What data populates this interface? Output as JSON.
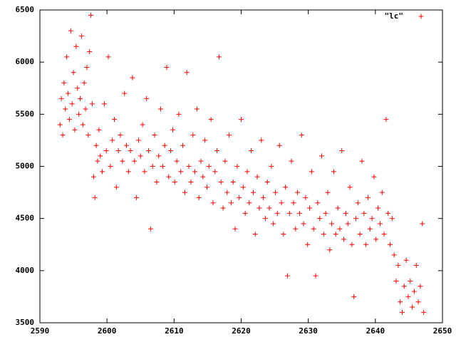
{
  "chart_data": {
    "type": "scatter",
    "x": [
      2593.0,
      2593.2,
      2593.4,
      2593.6,
      2593.8,
      2594.0,
      2594.2,
      2594.4,
      2594.6,
      2594.8,
      2595.0,
      2595.2,
      2595.4,
      2595.6,
      2595.8,
      2596.0,
      2596.2,
      2596.4,
      2596.6,
      2596.8,
      2597.0,
      2597.2,
      2597.4,
      2597.6,
      2597.8,
      2598.0,
      2598.2,
      2598.4,
      2598.6,
      2598.8,
      2599.0,
      2599.3,
      2599.6,
      2599.9,
      2600.2,
      2600.5,
      2600.8,
      2601.1,
      2601.4,
      2601.7,
      2602.0,
      2602.3,
      2602.6,
      2602.9,
      2603.2,
      2603.5,
      2603.8,
      2604.1,
      2604.4,
      2604.7,
      2605.0,
      2605.3,
      2605.6,
      2605.9,
      2606.2,
      2606.5,
      2606.8,
      2607.1,
      2607.4,
      2607.7,
      2608.0,
      2608.3,
      2608.6,
      2608.9,
      2609.2,
      2609.5,
      2609.8,
      2610.1,
      2610.4,
      2610.7,
      2611.0,
      2611.3,
      2611.6,
      2611.9,
      2612.2,
      2612.5,
      2612.8,
      2613.1,
      2613.4,
      2613.7,
      2614.0,
      2614.3,
      2614.6,
      2614.9,
      2615.2,
      2615.5,
      2615.8,
      2616.1,
      2616.4,
      2616.7,
      2617.0,
      2617.3,
      2617.6,
      2617.9,
      2618.2,
      2618.5,
      2618.8,
      2619.1,
      2619.4,
      2619.7,
      2620.0,
      2620.3,
      2620.6,
      2620.9,
      2621.2,
      2621.5,
      2621.8,
      2622.1,
      2622.4,
      2622.7,
      2623.0,
      2623.3,
      2623.6,
      2623.9,
      2624.2,
      2624.5,
      2624.8,
      2625.1,
      2625.4,
      2625.7,
      2626.0,
      2626.3,
      2626.6,
      2626.9,
      2627.2,
      2627.5,
      2627.8,
      2628.1,
      2628.4,
      2628.7,
      2629.0,
      2629.3,
      2629.6,
      2629.9,
      2630.2,
      2630.5,
      2630.8,
      2631.1,
      2631.4,
      2631.7,
      2632.0,
      2632.3,
      2632.6,
      2632.9,
      2633.2,
      2633.5,
      2633.8,
      2634.1,
      2634.4,
      2634.7,
      2635.0,
      2635.3,
      2635.6,
      2635.9,
      2636.2,
      2636.5,
      2636.8,
      2637.1,
      2637.4,
      2637.7,
      2638.0,
      2638.3,
      2638.6,
      2638.9,
      2639.2,
      2639.5,
      2639.8,
      2640.1,
      2640.4,
      2640.7,
      2641.0,
      2641.3,
      2641.6,
      2641.9,
      2642.2,
      2642.5,
      2642.8,
      2643.1,
      2643.4,
      2643.7,
      2644.0,
      2644.3,
      2644.6,
      2644.9,
      2645.2,
      2645.5,
      2645.8,
      2646.1,
      2646.4,
      2646.7,
      2647.0,
      2647.2
    ],
    "series": [
      {
        "name": "\"lc\"",
        "color": "#ff0000",
        "values": [
          5400,
          5650,
          5300,
          5800,
          5550,
          6050,
          5700,
          5450,
          6300,
          5600,
          5900,
          5350,
          6150,
          5750,
          5500,
          5650,
          6250,
          5400,
          5800,
          5550,
          5950,
          5300,
          6100,
          6450,
          5600,
          4900,
          4700,
          5200,
          5050,
          5350,
          5100,
          4950,
          5600,
          5150,
          6050,
          5000,
          5250,
          5450,
          4800,
          5150,
          5300,
          5050,
          5700,
          5200,
          4950,
          5150,
          5850,
          5050,
          4700,
          5250,
          5100,
          5400,
          4950,
          5650,
          5150,
          4400,
          5000,
          5300,
          4850,
          5100,
          5550,
          5000,
          5200,
          5950,
          4900,
          5150,
          5350,
          4850,
          5050,
          5500,
          4950,
          5200,
          4750,
          5900,
          5000,
          4850,
          5300,
          4950,
          5550,
          4700,
          5050,
          4900,
          5250,
          4800,
          5000,
          5450,
          4650,
          4950,
          5150,
          6050,
          4850,
          4600,
          5050,
          4750,
          5300,
          4650,
          4850,
          4400,
          5000,
          4700,
          5450,
          4800,
          4550,
          4950,
          4650,
          5150,
          4750,
          4350,
          4900,
          4600,
          5250,
          4700,
          4500,
          4850,
          4600,
          5000,
          4450,
          4750,
          4550,
          5200,
          4650,
          4350,
          4800,
          3950,
          4550,
          5050,
          4650,
          4400,
          4750,
          4550,
          5300,
          4450,
          4700,
          4250,
          4600,
          4950,
          4400,
          3950,
          4650,
          4500,
          5100,
          4350,
          4550,
          4750,
          4200,
          4450,
          4950,
          4350,
          4600,
          4400,
          5150,
          4300,
          4550,
          4450,
          4800,
          4250,
          3750,
          4500,
          4650,
          4350,
          5050,
          4550,
          4250,
          4700,
          4400,
          4500,
          4900,
          4300,
          4600,
          4450,
          4750,
          4350,
          5450,
          4550,
          4250,
          4500,
          4150,
          3900,
          4050,
          3700,
          3600,
          3850,
          4100,
          3750,
          3900,
          3650,
          3800,
          4050,
          3700,
          3850,
          4450,
          3600
        ]
      }
    ],
    "xlim": [
      2590,
      2650
    ],
    "ylim": [
      3500,
      6500
    ],
    "xticks": [
      2590,
      2600,
      2610,
      2620,
      2630,
      2640,
      2650
    ],
    "yticks": [
      3500,
      4000,
      4500,
      5000,
      5500,
      6000,
      6500
    ],
    "legend": "top-right"
  }
}
